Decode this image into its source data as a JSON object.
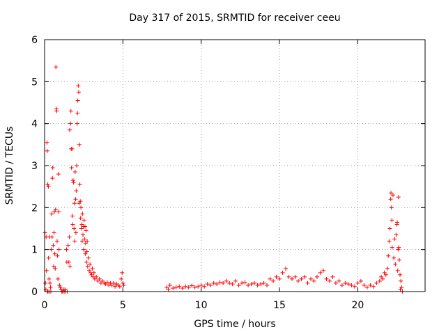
{
  "chart_data": {
    "type": "scatter",
    "title": "Day 317 of 2015, SRMTID for receiver ceeu",
    "xlabel": "GPS time / hours",
    "ylabel": "SRMTID / TECUs",
    "xlim": [
      0,
      24.3
    ],
    "ylim": [
      0,
      6
    ],
    "xticks": [
      0,
      5,
      10,
      15,
      20
    ],
    "yticks": [
      0,
      1,
      2,
      3,
      4,
      5,
      6
    ],
    "grid": true,
    "marker": "+",
    "color": "#ff0000",
    "series": [
      {
        "name": "SRMTID",
        "points": [
          [
            0.02,
            1.4
          ],
          [
            0.05,
            0.2
          ],
          [
            0.08,
            0.05
          ],
          [
            0.1,
            1.3
          ],
          [
            0.12,
            0.5
          ],
          [
            0.15,
            3.55
          ],
          [
            0.17,
            3.35
          ],
          [
            0.18,
            0.0
          ],
          [
            0.2,
            2.55
          ],
          [
            0.22,
            0.0
          ],
          [
            0.24,
            2.5
          ],
          [
            0.25,
            0.8
          ],
          [
            0.28,
            0.3
          ],
          [
            0.3,
            0.0
          ],
          [
            0.32,
            1.3
          ],
          [
            0.35,
            0.2
          ],
          [
            0.38,
            0.1
          ],
          [
            0.4,
            0.0
          ],
          [
            0.42,
            1.0
          ],
          [
            0.45,
            1.85
          ],
          [
            0.48,
            1.3
          ],
          [
            0.5,
            2.7
          ],
          [
            0.52,
            2.95
          ],
          [
            0.55,
            1.1
          ],
          [
            0.58,
            0.6
          ],
          [
            0.6,
            1.4
          ],
          [
            0.62,
            1.9
          ],
          [
            0.65,
            0.9
          ],
          [
            0.68,
            0.55
          ],
          [
            0.7,
            1.95
          ],
          [
            0.72,
            5.35
          ],
          [
            0.75,
            4.35
          ],
          [
            0.77,
            4.3
          ],
          [
            0.8,
            1.2
          ],
          [
            0.82,
            0.85
          ],
          [
            0.85,
            0.3
          ],
          [
            0.88,
            2.8
          ],
          [
            0.9,
            1.9
          ],
          [
            0.92,
            1.0
          ],
          [
            0.95,
            0.15
          ],
          [
            1.0,
            0.1
          ],
          [
            1.05,
            0.05
          ],
          [
            1.1,
            0.0
          ],
          [
            1.15,
            0.0
          ],
          [
            1.2,
            0.05
          ],
          [
            1.25,
            0.0
          ],
          [
            1.3,
            0.05
          ],
          [
            1.35,
            0.0
          ],
          [
            1.4,
            1.0
          ],
          [
            1.42,
            0.7
          ],
          [
            1.45,
            0.0
          ],
          [
            1.5,
            1.1
          ],
          [
            1.55,
            0.7
          ],
          [
            1.58,
            1.3
          ],
          [
            1.6,
            3.85
          ],
          [
            1.62,
            0.6
          ],
          [
            1.65,
            4.0
          ],
          [
            1.68,
            4.3
          ],
          [
            1.7,
            3.4
          ],
          [
            1.72,
            2.95
          ],
          [
            1.75,
            3.4
          ],
          [
            1.78,
            1.8
          ],
          [
            1.8,
            1.6
          ],
          [
            1.82,
            2.65
          ],
          [
            1.85,
            2.6
          ],
          [
            1.88,
            1.5
          ],
          [
            1.9,
            2.1
          ],
          [
            1.92,
            1.2
          ],
          [
            1.95,
            2.85
          ],
          [
            1.98,
            2.2
          ],
          [
            2.0,
            1.4
          ],
          [
            2.02,
            2.4
          ],
          [
            2.05,
            3.0
          ],
          [
            2.08,
            4.0
          ],
          [
            2.1,
            4.25
          ],
          [
            2.12,
            4.55
          ],
          [
            2.15,
            4.9
          ],
          [
            2.18,
            4.75
          ],
          [
            2.2,
            2.1
          ],
          [
            2.22,
            3.5
          ],
          [
            2.25,
            2.55
          ],
          [
            2.28,
            2.15
          ],
          [
            2.3,
            1.75
          ],
          [
            2.32,
            2.0
          ],
          [
            2.35,
            1.5
          ],
          [
            2.38,
            1.6
          ],
          [
            2.4,
            1.2
          ],
          [
            2.42,
            1.85
          ],
          [
            2.45,
            1.35
          ],
          [
            2.48,
            1.55
          ],
          [
            2.5,
            1.0
          ],
          [
            2.52,
            1.7
          ],
          [
            2.55,
            1.25
          ],
          [
            2.58,
            1.55
          ],
          [
            2.6,
            0.9
          ],
          [
            2.62,
            1.15
          ],
          [
            2.65,
            1.45
          ],
          [
            2.68,
            0.7
          ],
          [
            2.7,
            0.95
          ],
          [
            2.72,
            1.2
          ],
          [
            2.75,
            0.6
          ],
          [
            2.8,
            0.8
          ],
          [
            2.85,
            0.5
          ],
          [
            2.9,
            0.65
          ],
          [
            2.95,
            0.45
          ],
          [
            3.0,
            0.4
          ],
          [
            3.05,
            0.55
          ],
          [
            3.1,
            0.35
          ],
          [
            3.15,
            0.45
          ],
          [
            3.2,
            0.3
          ],
          [
            3.3,
            0.35
          ],
          [
            3.4,
            0.25
          ],
          [
            3.5,
            0.3
          ],
          [
            3.6,
            0.2
          ],
          [
            3.7,
            0.25
          ],
          [
            3.8,
            0.2
          ],
          [
            3.9,
            0.18
          ],
          [
            4.0,
            0.22
          ],
          [
            4.1,
            0.15
          ],
          [
            4.2,
            0.2
          ],
          [
            4.3,
            0.15
          ],
          [
            4.4,
            0.2
          ],
          [
            4.5,
            0.12
          ],
          [
            4.6,
            0.18
          ],
          [
            4.7,
            0.15
          ],
          [
            4.8,
            0.12
          ],
          [
            4.9,
            0.3
          ],
          [
            4.95,
            0.45
          ],
          [
            5.0,
            0.2
          ],
          [
            5.05,
            0.15
          ],
          [
            7.8,
            0.1
          ],
          [
            7.9,
            0.05
          ],
          [
            8.0,
            0.15
          ],
          [
            8.2,
            0.08
          ],
          [
            8.4,
            0.1
          ],
          [
            8.6,
            0.12
          ],
          [
            8.8,
            0.08
          ],
          [
            9.0,
            0.12
          ],
          [
            9.2,
            0.1
          ],
          [
            9.4,
            0.14
          ],
          [
            9.6,
            0.1
          ],
          [
            9.8,
            0.12
          ],
          [
            10.0,
            0.15
          ],
          [
            10.2,
            0.12
          ],
          [
            10.4,
            0.18
          ],
          [
            10.6,
            0.15
          ],
          [
            10.8,
            0.2
          ],
          [
            11.0,
            0.18
          ],
          [
            11.2,
            0.22
          ],
          [
            11.4,
            0.2
          ],
          [
            11.6,
            0.25
          ],
          [
            11.8,
            0.2
          ],
          [
            12.0,
            0.18
          ],
          [
            12.2,
            0.25
          ],
          [
            12.4,
            0.15
          ],
          [
            12.6,
            0.2
          ],
          [
            12.8,
            0.22
          ],
          [
            13.0,
            0.15
          ],
          [
            13.2,
            0.18
          ],
          [
            13.4,
            0.2
          ],
          [
            13.6,
            0.15
          ],
          [
            13.8,
            0.18
          ],
          [
            14.0,
            0.2
          ],
          [
            14.2,
            0.15
          ],
          [
            14.4,
            0.3
          ],
          [
            14.6,
            0.25
          ],
          [
            14.8,
            0.35
          ],
          [
            15.0,
            0.3
          ],
          [
            15.2,
            0.45
          ],
          [
            15.4,
            0.55
          ],
          [
            15.6,
            0.35
          ],
          [
            15.8,
            0.3
          ],
          [
            16.0,
            0.35
          ],
          [
            16.2,
            0.25
          ],
          [
            16.4,
            0.3
          ],
          [
            16.6,
            0.35
          ],
          [
            16.8,
            0.2
          ],
          [
            17.0,
            0.3
          ],
          [
            17.2,
            0.25
          ],
          [
            17.4,
            0.35
          ],
          [
            17.6,
            0.45
          ],
          [
            17.8,
            0.5
          ],
          [
            18.0,
            0.3
          ],
          [
            18.2,
            0.25
          ],
          [
            18.4,
            0.35
          ],
          [
            18.6,
            0.2
          ],
          [
            18.8,
            0.25
          ],
          [
            19.0,
            0.15
          ],
          [
            19.2,
            0.2
          ],
          [
            19.4,
            0.18
          ],
          [
            19.6,
            0.15
          ],
          [
            19.8,
            0.12
          ],
          [
            20.0,
            0.2
          ],
          [
            20.2,
            0.25
          ],
          [
            20.4,
            0.15
          ],
          [
            20.6,
            0.1
          ],
          [
            20.8,
            0.15
          ],
          [
            21.0,
            0.12
          ],
          [
            21.2,
            0.2
          ],
          [
            21.4,
            0.25
          ],
          [
            21.5,
            0.35
          ],
          [
            21.6,
            0.3
          ],
          [
            21.7,
            0.45
          ],
          [
            21.8,
            0.4
          ],
          [
            21.9,
            0.55
          ],
          [
            21.95,
            0.85
          ],
          [
            22.0,
            1.2
          ],
          [
            22.05,
            1.5
          ],
          [
            22.1,
            2.2
          ],
          [
            22.12,
            2.35
          ],
          [
            22.15,
            2.0
          ],
          [
            22.18,
            1.7
          ],
          [
            22.2,
            1.05
          ],
          [
            22.25,
            2.3
          ],
          [
            22.3,
            0.8
          ],
          [
            22.35,
            1.25
          ],
          [
            22.4,
            0.65
          ],
          [
            22.45,
            1.35
          ],
          [
            22.5,
            1.6
          ],
          [
            22.52,
            1.65
          ],
          [
            22.55,
            0.5
          ],
          [
            22.58,
            1.0
          ],
          [
            22.6,
            2.25
          ],
          [
            22.62,
            1.05
          ],
          [
            22.65,
            0.75
          ],
          [
            22.7,
            0.4
          ],
          [
            22.72,
            0.05
          ],
          [
            22.75,
            0.25
          ],
          [
            22.8,
            0.1
          ],
          [
            22.85,
            0.0
          ]
        ]
      }
    ]
  }
}
